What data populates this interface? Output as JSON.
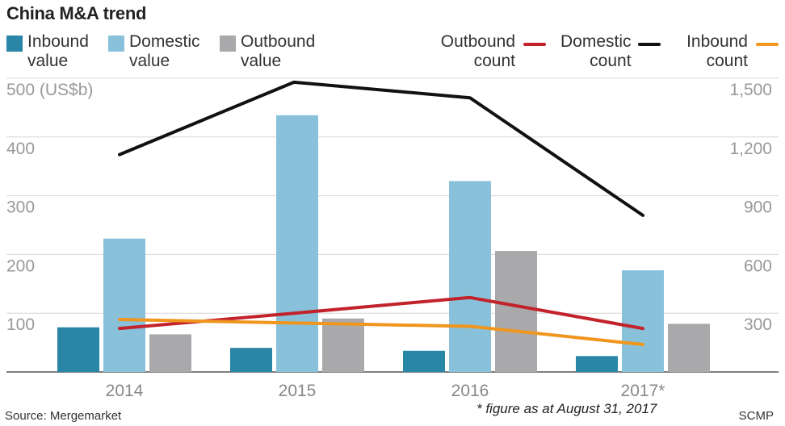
{
  "chart_data": {
    "type": "bar",
    "title": "China M&A trend",
    "categories": [
      "2014",
      "2015",
      "2016",
      "2017*"
    ],
    "left_axis": {
      "unit_label": "500 (US$b)",
      "ticks": [
        100,
        200,
        300,
        400
      ],
      "range": [
        0,
        500
      ]
    },
    "right_axis": {
      "ticks": [
        "300",
        "600",
        "900",
        "1,200",
        "1,500"
      ],
      "range": [
        0,
        1500
      ]
    },
    "series": [
      {
        "name": "Inbound value",
        "type": "bar",
        "axis": "left",
        "color": "#2a86a6",
        "values": [
          76,
          41,
          36,
          27
        ]
      },
      {
        "name": "Domestic value",
        "type": "bar",
        "axis": "left",
        "color": "#89c1db",
        "values": [
          227,
          437,
          325,
          173
        ]
      },
      {
        "name": "Outbound value",
        "type": "bar",
        "axis": "left",
        "color": "#a9a9ac",
        "values": [
          64,
          91,
          206,
          82
        ]
      },
      {
        "name": "Outbound count",
        "type": "line",
        "axis": "right",
        "color": "#c2232b",
        "values": [
          222,
          300,
          380,
          222
        ]
      },
      {
        "name": "Domestic count",
        "type": "line",
        "axis": "right",
        "color": "#111111",
        "values": [
          1110,
          1480,
          1400,
          800
        ]
      },
      {
        "name": "Inbound count",
        "type": "line",
        "axis": "right",
        "color": "#f0951e",
        "values": [
          268,
          250,
          233,
          140
        ]
      }
    ],
    "legend": {
      "inbound_value": [
        "Inbound",
        "value"
      ],
      "domestic_value": [
        "Domestic",
        "value"
      ],
      "outbound_value": [
        "Outbound",
        "value"
      ],
      "outbound_count": [
        "Outbound",
        "count"
      ],
      "domestic_count": [
        "Domestic",
        "count"
      ],
      "inbound_count": [
        "Inbound",
        "count"
      ]
    },
    "footnote": "* figure as at August 31, 2017",
    "source": "Source: Mergemarket",
    "credit": "SCMP"
  }
}
